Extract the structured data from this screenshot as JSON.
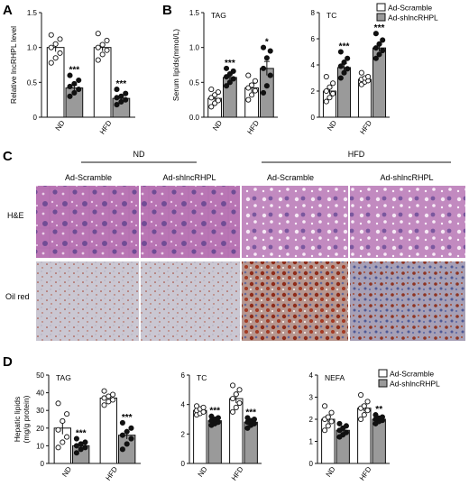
{
  "legend": {
    "scramble": "Ad-Scramble",
    "sh": "Ad-shlncRHPL"
  },
  "colors": {
    "scramble": "#ffffff",
    "sh": "#9a9a9a",
    "axis": "#111111",
    "he_base": "#b46fae",
    "oil_base": "#c9c6cf",
    "oil_red": "#9b3a26"
  },
  "panel_c": {
    "letter": "C",
    "groups": [
      "ND",
      "HFD"
    ],
    "columns": [
      "Ad-Scramble",
      "Ad-shlncRHPL",
      "Ad-Scramble",
      "Ad-shlncRHPL"
    ],
    "rows": [
      "H&E",
      "Oil red"
    ]
  },
  "chart_data": [
    {
      "type": "bar",
      "panel": "A",
      "title": "",
      "ylabel": "Relative lncRHPL level",
      "categories": [
        "ND",
        "HFD"
      ],
      "ylim": [
        0,
        1.5
      ],
      "yticks": [
        0,
        0.5,
        1.0,
        1.5
      ],
      "series": [
        {
          "name": "Ad-Scramble",
          "values": [
            1.0,
            1.0
          ],
          "sem": [
            0.06,
            0.05
          ],
          "points": [
            [
              0.78,
              0.85,
              0.92,
              1.0,
              1.05,
              1.12,
              1.18
            ],
            [
              0.82,
              0.9,
              0.96,
              1.0,
              1.04,
              1.1,
              1.2
            ]
          ]
        },
        {
          "name": "Ad-shlncRHPL",
          "values": [
            0.42,
            0.27
          ],
          "sem": [
            0.04,
            0.03
          ],
          "points": [
            [
              0.3,
              0.35,
              0.4,
              0.44,
              0.48,
              0.53,
              0.6
            ],
            [
              0.18,
              0.22,
              0.25,
              0.28,
              0.3,
              0.34,
              0.4
            ]
          ]
        }
      ],
      "sig": [
        "***",
        "***"
      ]
    },
    {
      "type": "bar",
      "panel": "B",
      "title": "TAG",
      "ylabel": "Serum lipids(mmol/L)",
      "categories": [
        "ND",
        "HFD"
      ],
      "ylim": [
        0,
        1.5
      ],
      "yticks": [
        0.0,
        0.5,
        1.0,
        1.5
      ],
      "series": [
        {
          "name": "Ad-Scramble",
          "values": [
            0.27,
            0.42
          ],
          "sem": [
            0.04,
            0.06
          ],
          "points": [
            [
              0.15,
              0.2,
              0.24,
              0.28,
              0.32,
              0.36,
              0.4
            ],
            [
              0.25,
              0.32,
              0.38,
              0.42,
              0.46,
              0.52,
              0.6
            ]
          ]
        },
        {
          "name": "Ad-shlncRHPL",
          "values": [
            0.57,
            0.7
          ],
          "sem": [
            0.04,
            0.1
          ],
          "points": [
            [
              0.45,
              0.5,
              0.55,
              0.58,
              0.62,
              0.66,
              0.7
            ],
            [
              0.35,
              0.45,
              0.6,
              0.7,
              0.85,
              0.95,
              1.0
            ]
          ]
        }
      ],
      "sig": [
        "***",
        "*"
      ]
    },
    {
      "type": "bar",
      "panel": "B",
      "title": "TC",
      "ylabel": "",
      "categories": [
        "ND",
        "HFD"
      ],
      "ylim": [
        0,
        8
      ],
      "yticks": [
        0,
        2,
        4,
        6,
        8
      ],
      "series": [
        {
          "name": "Ad-Scramble",
          "values": [
            2.0,
            2.9
          ],
          "sem": [
            0.25,
            0.15
          ],
          "points": [
            [
              1.2,
              1.5,
              1.8,
              2.0,
              2.3,
              2.6,
              3.1
            ],
            [
              2.5,
              2.7,
              2.8,
              2.9,
              3.0,
              3.1,
              3.4
            ]
          ]
        },
        {
          "name": "Ad-shlncRHPL",
          "values": [
            3.8,
            5.3
          ],
          "sem": [
            0.3,
            0.25
          ],
          "points": [
            [
              3.0,
              3.4,
              3.7,
              3.9,
              4.2,
              4.5,
              5.0
            ],
            [
              4.5,
              4.8,
              5.1,
              5.3,
              5.6,
              5.9,
              6.4
            ]
          ]
        }
      ],
      "sig": [
        "***",
        "***"
      ]
    },
    {
      "type": "bar",
      "panel": "D",
      "title": "TAG",
      "ylabel": "Hepatic lipids\n(mg/g protein)",
      "categories": [
        "ND",
        "HFD"
      ],
      "ylim": [
        0,
        50
      ],
      "yticks": [
        0,
        10,
        20,
        30,
        40,
        50
      ],
      "series": [
        {
          "name": "Ad-Scramble",
          "values": [
            20,
            37
          ],
          "sem": [
            3.5,
            1.2
          ],
          "points": [
            [
              9,
              12,
              15,
              19,
              24,
              28,
              34
            ],
            [
              33,
              35,
              36,
              37,
              38,
              39,
              41
            ]
          ]
        },
        {
          "name": "Ad-shlncRHPL",
          "values": [
            10,
            16
          ],
          "sem": [
            1.2,
            2.2
          ],
          "points": [
            [
              6,
              8,
              9,
              10,
              11,
              12,
              14
            ],
            [
              8,
              11,
              14,
              16,
              18,
              20,
              23
            ]
          ]
        }
      ],
      "sig": [
        "***",
        "***"
      ]
    },
    {
      "type": "bar",
      "panel": "D",
      "title": "TC",
      "ylabel": "",
      "categories": [
        "ND",
        "HFD"
      ],
      "ylim": [
        0,
        6
      ],
      "yticks": [
        0,
        2,
        4,
        6
      ],
      "series": [
        {
          "name": "Ad-Scramble",
          "values": [
            3.6,
            4.4
          ],
          "sem": [
            0.1,
            0.3
          ],
          "points": [
            [
              3.3,
              3.4,
              3.5,
              3.6,
              3.7,
              3.8,
              3.9
            ],
            [
              3.5,
              3.8,
              4.1,
              4.4,
              4.7,
              5.0,
              5.3
            ]
          ]
        },
        {
          "name": "Ad-shlncRHPL",
          "values": [
            2.9,
            2.8
          ],
          "sem": [
            0.1,
            0.1
          ],
          "points": [
            [
              2.6,
              2.7,
              2.8,
              2.9,
              3.0,
              3.1,
              3.2
            ],
            [
              2.4,
              2.6,
              2.7,
              2.8,
              2.9,
              3.0,
              3.1
            ]
          ]
        }
      ],
      "sig": [
        "***",
        "***"
      ]
    },
    {
      "type": "bar",
      "panel": "D",
      "title": "NEFA",
      "ylabel": "",
      "categories": [
        "ND",
        "HFD"
      ],
      "ylim": [
        0,
        4
      ],
      "yticks": [
        0,
        1,
        2,
        3,
        4
      ],
      "series": [
        {
          "name": "Ad-Scramble",
          "values": [
            2.0,
            2.5
          ],
          "sem": [
            0.15,
            0.15
          ],
          "points": [
            [
              1.5,
              1.7,
              1.9,
              2.0,
              2.1,
              2.3,
              2.6
            ],
            [
              2.0,
              2.2,
              2.4,
              2.5,
              2.6,
              2.8,
              3.1
            ]
          ]
        },
        {
          "name": "Ad-shlncRHPL",
          "values": [
            1.5,
            2.0
          ],
          "sem": [
            0.08,
            0.05
          ],
          "points": [
            [
              1.2,
              1.3,
              1.4,
              1.5,
              1.6,
              1.7,
              1.8
            ],
            [
              1.8,
              1.9,
              1.95,
              2.0,
              2.05,
              2.1,
              2.2
            ]
          ]
        }
      ],
      "sig": [
        "",
        "**"
      ]
    }
  ]
}
